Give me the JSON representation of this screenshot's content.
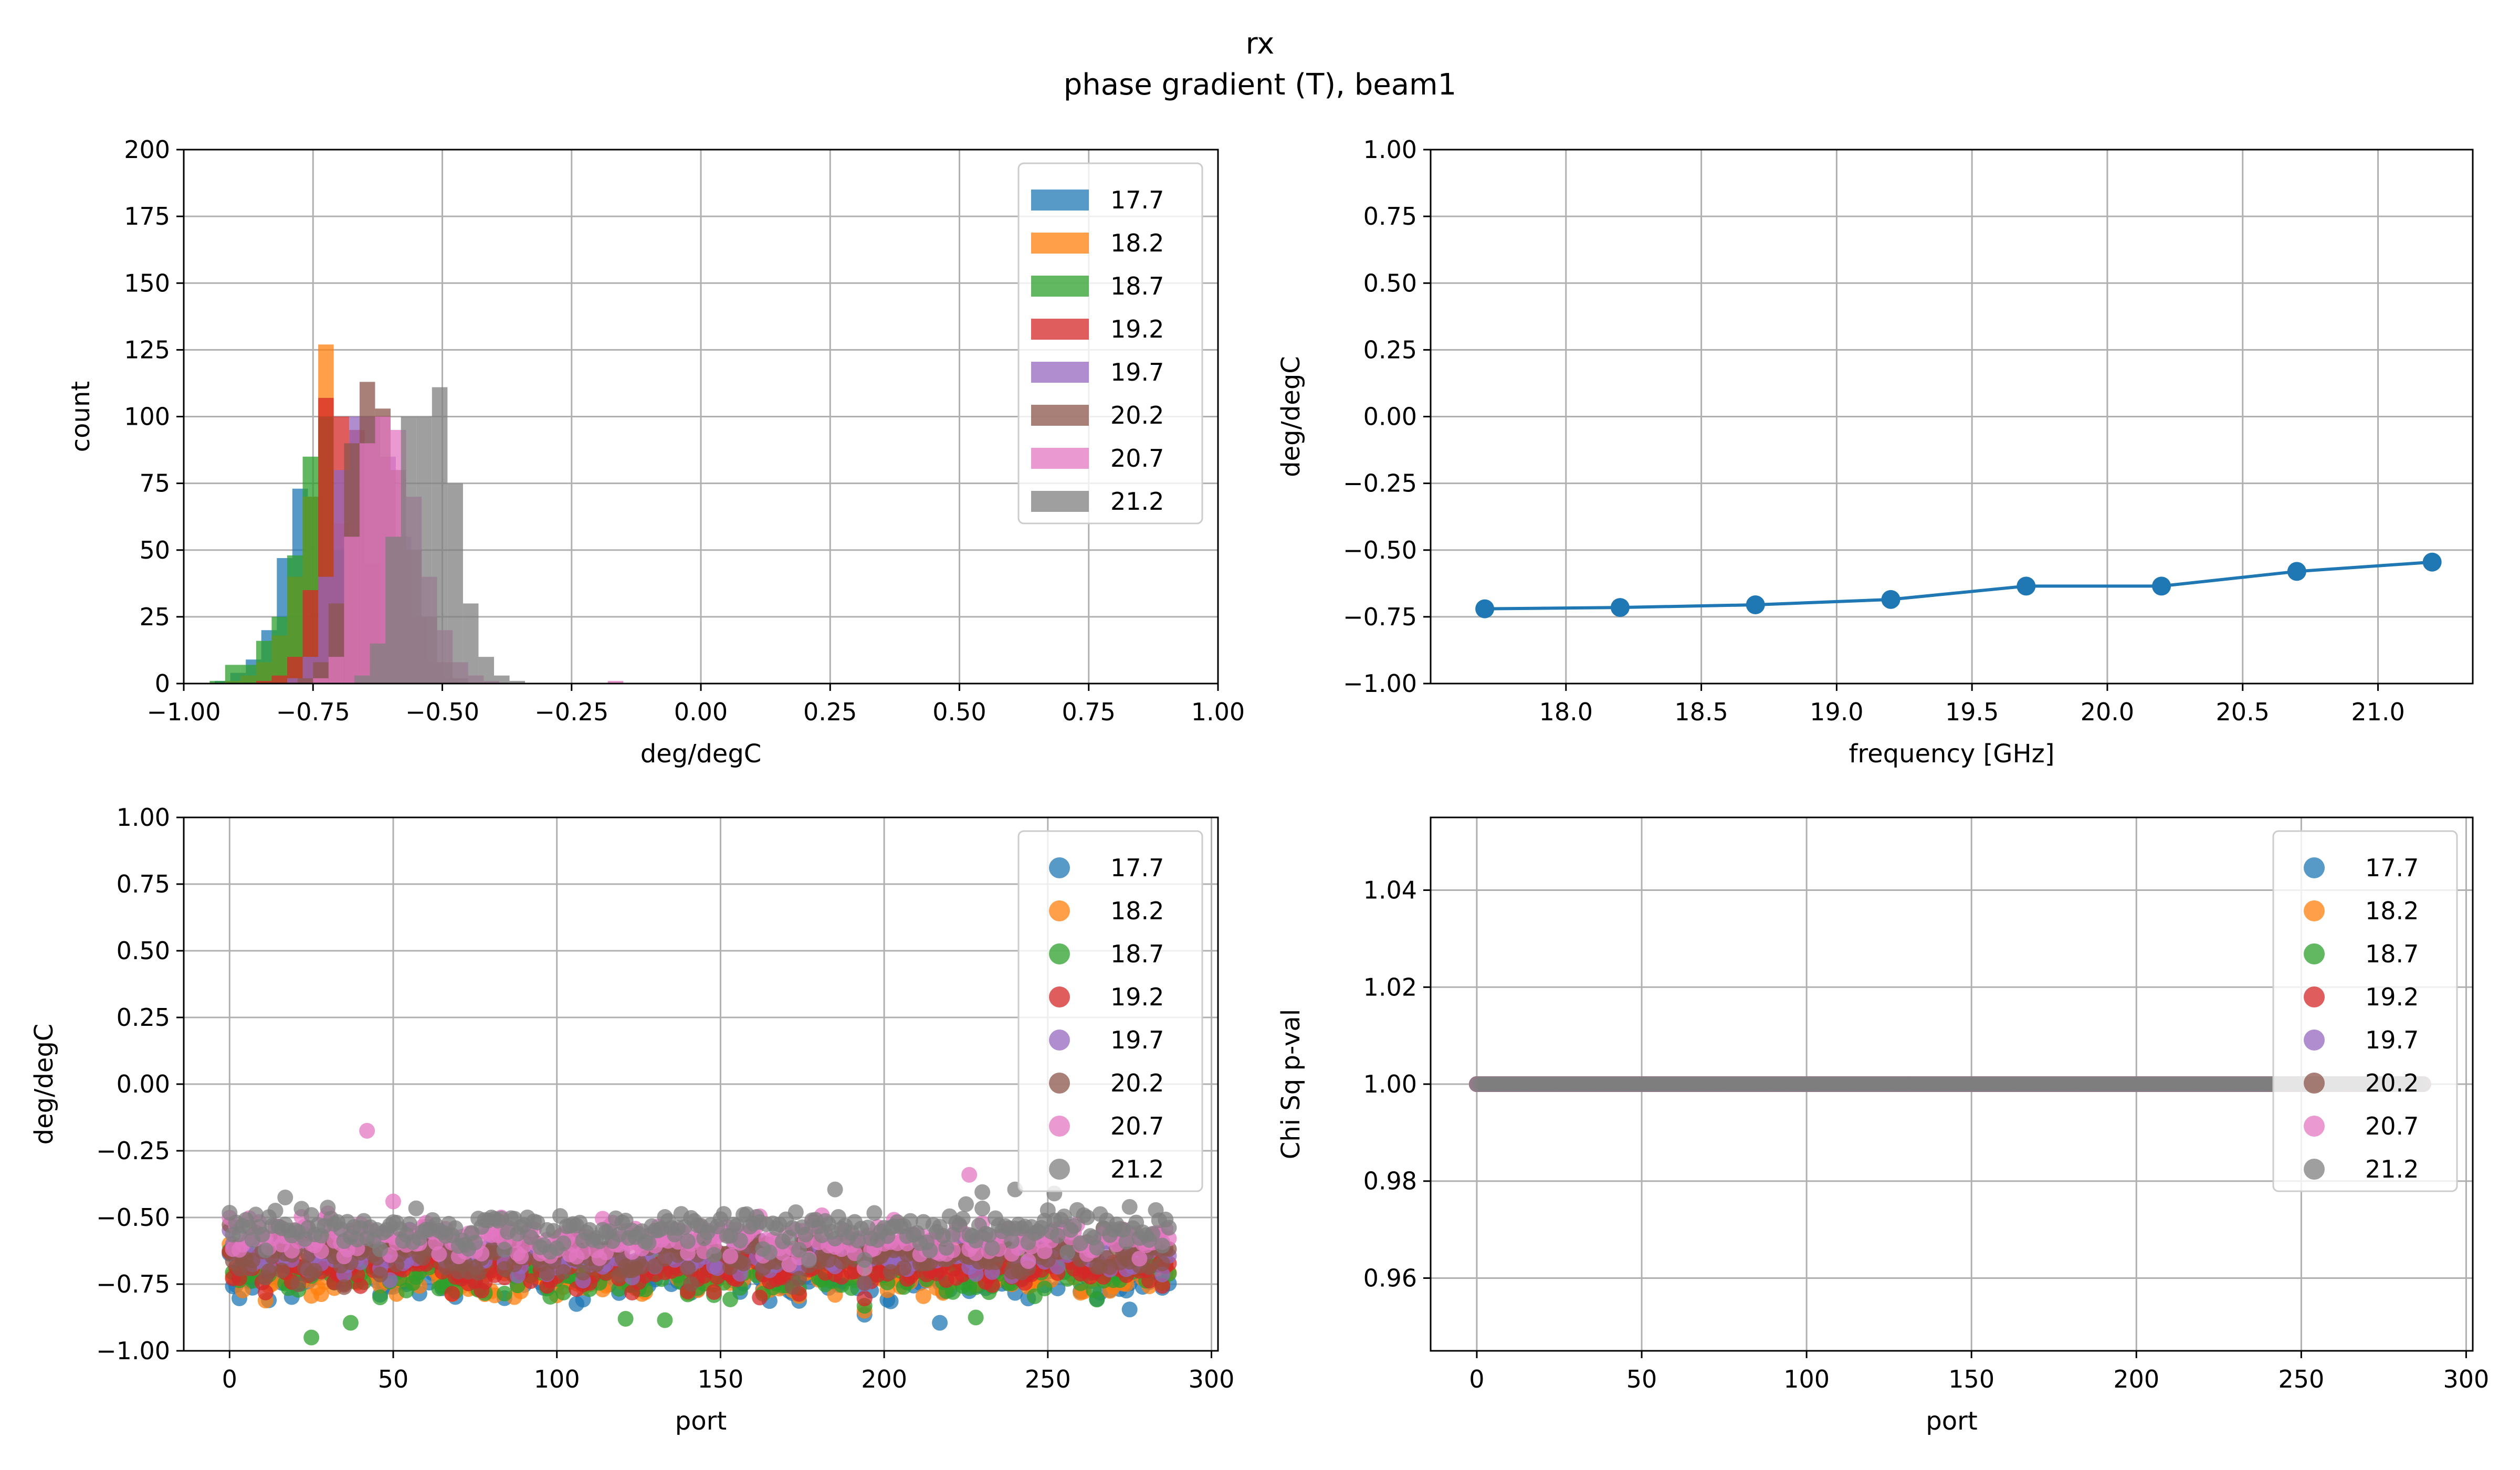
{
  "figure": {
    "title": "rx",
    "subtitle": "phase gradient (T), beam1"
  },
  "colors": {
    "17.7": "#1f77b4",
    "18.2": "#ff7f0e",
    "18.7": "#2ca02c",
    "19.2": "#d62728",
    "19.7": "#9467bd",
    "20.2": "#8c564b",
    "20.7": "#e377c2",
    "21.2": "#7f7f7f"
  },
  "chart_data": [
    {
      "id": "hist",
      "type": "bar",
      "title": "",
      "xlabel": "deg/degC",
      "ylabel": "count",
      "xlim": [
        -1.0,
        1.0
      ],
      "ylim": [
        0,
        200
      ],
      "xticks": [
        "−1.00",
        "−0.75",
        "−0.50",
        "−0.25",
        "0.00",
        "0.25",
        "0.50",
        "0.75",
        "1.00"
      ],
      "yticks": [
        "0",
        "25",
        "50",
        "75",
        "100",
        "125",
        "150",
        "175",
        "200"
      ],
      "grid": true,
      "legend": "top-right",
      "series": [
        {
          "name": "17.7",
          "bins": [
            -0.94,
            -0.91,
            -0.88,
            -0.85,
            -0.82,
            -0.79,
            -0.76,
            -0.73,
            -0.7,
            -0.67,
            -0.64
          ],
          "counts": [
            1,
            4,
            9,
            20,
            47,
            73,
            70,
            35,
            15,
            6,
            2
          ]
        },
        {
          "name": "18.2",
          "bins": [
            -0.92,
            -0.89,
            -0.86,
            -0.83,
            -0.8,
            -0.77,
            -0.74,
            -0.71,
            -0.68,
            -0.65,
            -0.62
          ],
          "counts": [
            1,
            3,
            8,
            18,
            40,
            70,
            127,
            60,
            25,
            8,
            2
          ]
        },
        {
          "name": "18.7",
          "bins": [
            -0.95,
            -0.92,
            -0.89,
            -0.86,
            -0.83,
            -0.8,
            -0.77,
            -0.74,
            -0.71,
            -0.68,
            -0.65,
            -0.62
          ],
          "counts": [
            1,
            7,
            7,
            16,
            25,
            48,
            85,
            100,
            50,
            20,
            6,
            2
          ]
        },
        {
          "name": "19.2",
          "bins": [
            -0.86,
            -0.83,
            -0.8,
            -0.77,
            -0.74,
            -0.71,
            -0.68,
            -0.65,
            -0.62,
            -0.59,
            -0.56
          ],
          "counts": [
            1,
            3,
            10,
            35,
            107,
            100,
            95,
            45,
            15,
            5,
            1
          ]
        },
        {
          "name": "19.7",
          "bins": [
            -0.8,
            -0.77,
            -0.74,
            -0.71,
            -0.68,
            -0.65,
            -0.62,
            -0.59,
            -0.56,
            -0.53,
            -0.5
          ],
          "counts": [
            2,
            10,
            40,
            80,
            100,
            100,
            85,
            55,
            25,
            8,
            2
          ]
        },
        {
          "name": "20.2",
          "bins": [
            -0.78,
            -0.75,
            -0.72,
            -0.69,
            -0.66,
            -0.63,
            -0.6,
            -0.57,
            -0.54,
            -0.51,
            -0.48
          ],
          "counts": [
            2,
            8,
            30,
            90,
            113,
            103,
            80,
            50,
            25,
            8,
            2
          ]
        },
        {
          "name": "20.7",
          "bins": [
            -0.75,
            -0.72,
            -0.69,
            -0.66,
            -0.63,
            -0.6,
            -0.57,
            -0.54,
            -0.51,
            -0.48,
            -0.45,
            -0.42,
            -0.18
          ],
          "counts": [
            2,
            10,
            55,
            90,
            100,
            95,
            70,
            40,
            20,
            8,
            3,
            1,
            1
          ]
        },
        {
          "name": "21.2",
          "bins": [
            -0.67,
            -0.64,
            -0.61,
            -0.58,
            -0.55,
            -0.52,
            -0.49,
            -0.46,
            -0.43,
            -0.4,
            -0.37
          ],
          "counts": [
            3,
            15,
            55,
            100,
            100,
            111,
            75,
            30,
            10,
            3,
            1
          ]
        }
      ]
    },
    {
      "id": "freq",
      "type": "line",
      "title": "",
      "xlabel": "frequency [GHz]",
      "ylabel": "deg/degC",
      "xlim": [
        17.5,
        21.35
      ],
      "ylim": [
        -1.0,
        1.0
      ],
      "xticks": [
        "18.0",
        "18.5",
        "19.0",
        "19.5",
        "20.0",
        "20.5",
        "21.0"
      ],
      "xtick_values": [
        18.0,
        18.5,
        19.0,
        19.5,
        20.0,
        20.5,
        21.0
      ],
      "yticks": [
        "−1.00",
        "−0.75",
        "−0.50",
        "−0.25",
        "0.00",
        "0.25",
        "0.50",
        "0.75",
        "1.00"
      ],
      "grid": true,
      "x": [
        17.7,
        18.2,
        18.7,
        19.2,
        19.7,
        20.2,
        20.7,
        21.2
      ],
      "y": [
        -0.72,
        -0.715,
        -0.705,
        -0.685,
        -0.635,
        -0.635,
        -0.58,
        -0.545
      ]
    },
    {
      "id": "port",
      "type": "scatter",
      "title": "",
      "xlabel": "port",
      "ylabel": "deg/degC",
      "xlim": [
        -14,
        302
      ],
      "ylim": [
        -1.0,
        1.0
      ],
      "xticks": [
        "0",
        "50",
        "100",
        "150",
        "200",
        "250",
        "300"
      ],
      "xtick_values": [
        0,
        50,
        100,
        150,
        200,
        250,
        300
      ],
      "yticks": [
        "−1.00",
        "−0.75",
        "−0.50",
        "−0.25",
        "0.00",
        "0.25",
        "0.50",
        "0.75",
        "1.00"
      ],
      "grid": true,
      "legend": "top-right",
      "ports": 288,
      "series": [
        {
          "name": "17.7",
          "mean": -0.72,
          "spread": 0.05
        },
        {
          "name": "18.2",
          "mean": -0.715,
          "spread": 0.05
        },
        {
          "name": "18.7",
          "mean": -0.705,
          "spread": 0.055
        },
        {
          "name": "19.2",
          "mean": -0.685,
          "spread": 0.05
        },
        {
          "name": "19.7",
          "mean": -0.635,
          "spread": 0.05
        },
        {
          "name": "20.2",
          "mean": -0.635,
          "spread": 0.05
        },
        {
          "name": "20.7",
          "mean": -0.58,
          "spread": 0.05
        },
        {
          "name": "21.2",
          "mean": -0.545,
          "spread": 0.05
        }
      ],
      "outliers": [
        {
          "series": "20.7",
          "x": 42,
          "y": -0.175
        },
        {
          "series": "20.7",
          "x": 226,
          "y": -0.34
        },
        {
          "series": "20.7",
          "x": 50,
          "y": -0.44
        },
        {
          "series": "21.2",
          "x": 17,
          "y": -0.425
        },
        {
          "series": "21.2",
          "x": 185,
          "y": -0.395
        },
        {
          "series": "21.2",
          "x": 240,
          "y": -0.395
        },
        {
          "series": "21.2",
          "x": 252,
          "y": -0.41
        },
        {
          "series": "21.2",
          "x": 230,
          "y": -0.405
        },
        {
          "series": "18.7",
          "x": 25,
          "y": -0.95
        },
        {
          "series": "18.7",
          "x": 37,
          "y": -0.895
        },
        {
          "series": "18.7",
          "x": 121,
          "y": -0.88
        },
        {
          "series": "18.7",
          "x": 133,
          "y": -0.885
        },
        {
          "series": "18.7",
          "x": 228,
          "y": -0.875
        },
        {
          "series": "17.7",
          "x": 217,
          "y": -0.895
        },
        {
          "series": "17.7",
          "x": 275,
          "y": -0.845
        },
        {
          "series": "19.2",
          "x": 162,
          "y": -0.8
        }
      ]
    },
    {
      "id": "pval",
      "type": "scatter",
      "title": "",
      "xlabel": "port",
      "ylabel": "Chi Sq p-val",
      "xlim": [
        -14,
        302
      ],
      "ylim": [
        0.945,
        1.055
      ],
      "xticks": [
        "0",
        "50",
        "100",
        "150",
        "200",
        "250",
        "300"
      ],
      "xtick_values": [
        0,
        50,
        100,
        150,
        200,
        250,
        300
      ],
      "yticks": [
        "0.96",
        "0.98",
        "1.00",
        "1.02",
        "1.04"
      ],
      "ytick_values": [
        0.96,
        0.98,
        1.0,
        1.02,
        1.04
      ],
      "grid": true,
      "legend": "top-right",
      "ports": 288,
      "value": 1.0,
      "series": [
        "17.7",
        "18.2",
        "18.7",
        "19.2",
        "19.7",
        "20.2",
        "20.7",
        "21.2"
      ]
    }
  ]
}
